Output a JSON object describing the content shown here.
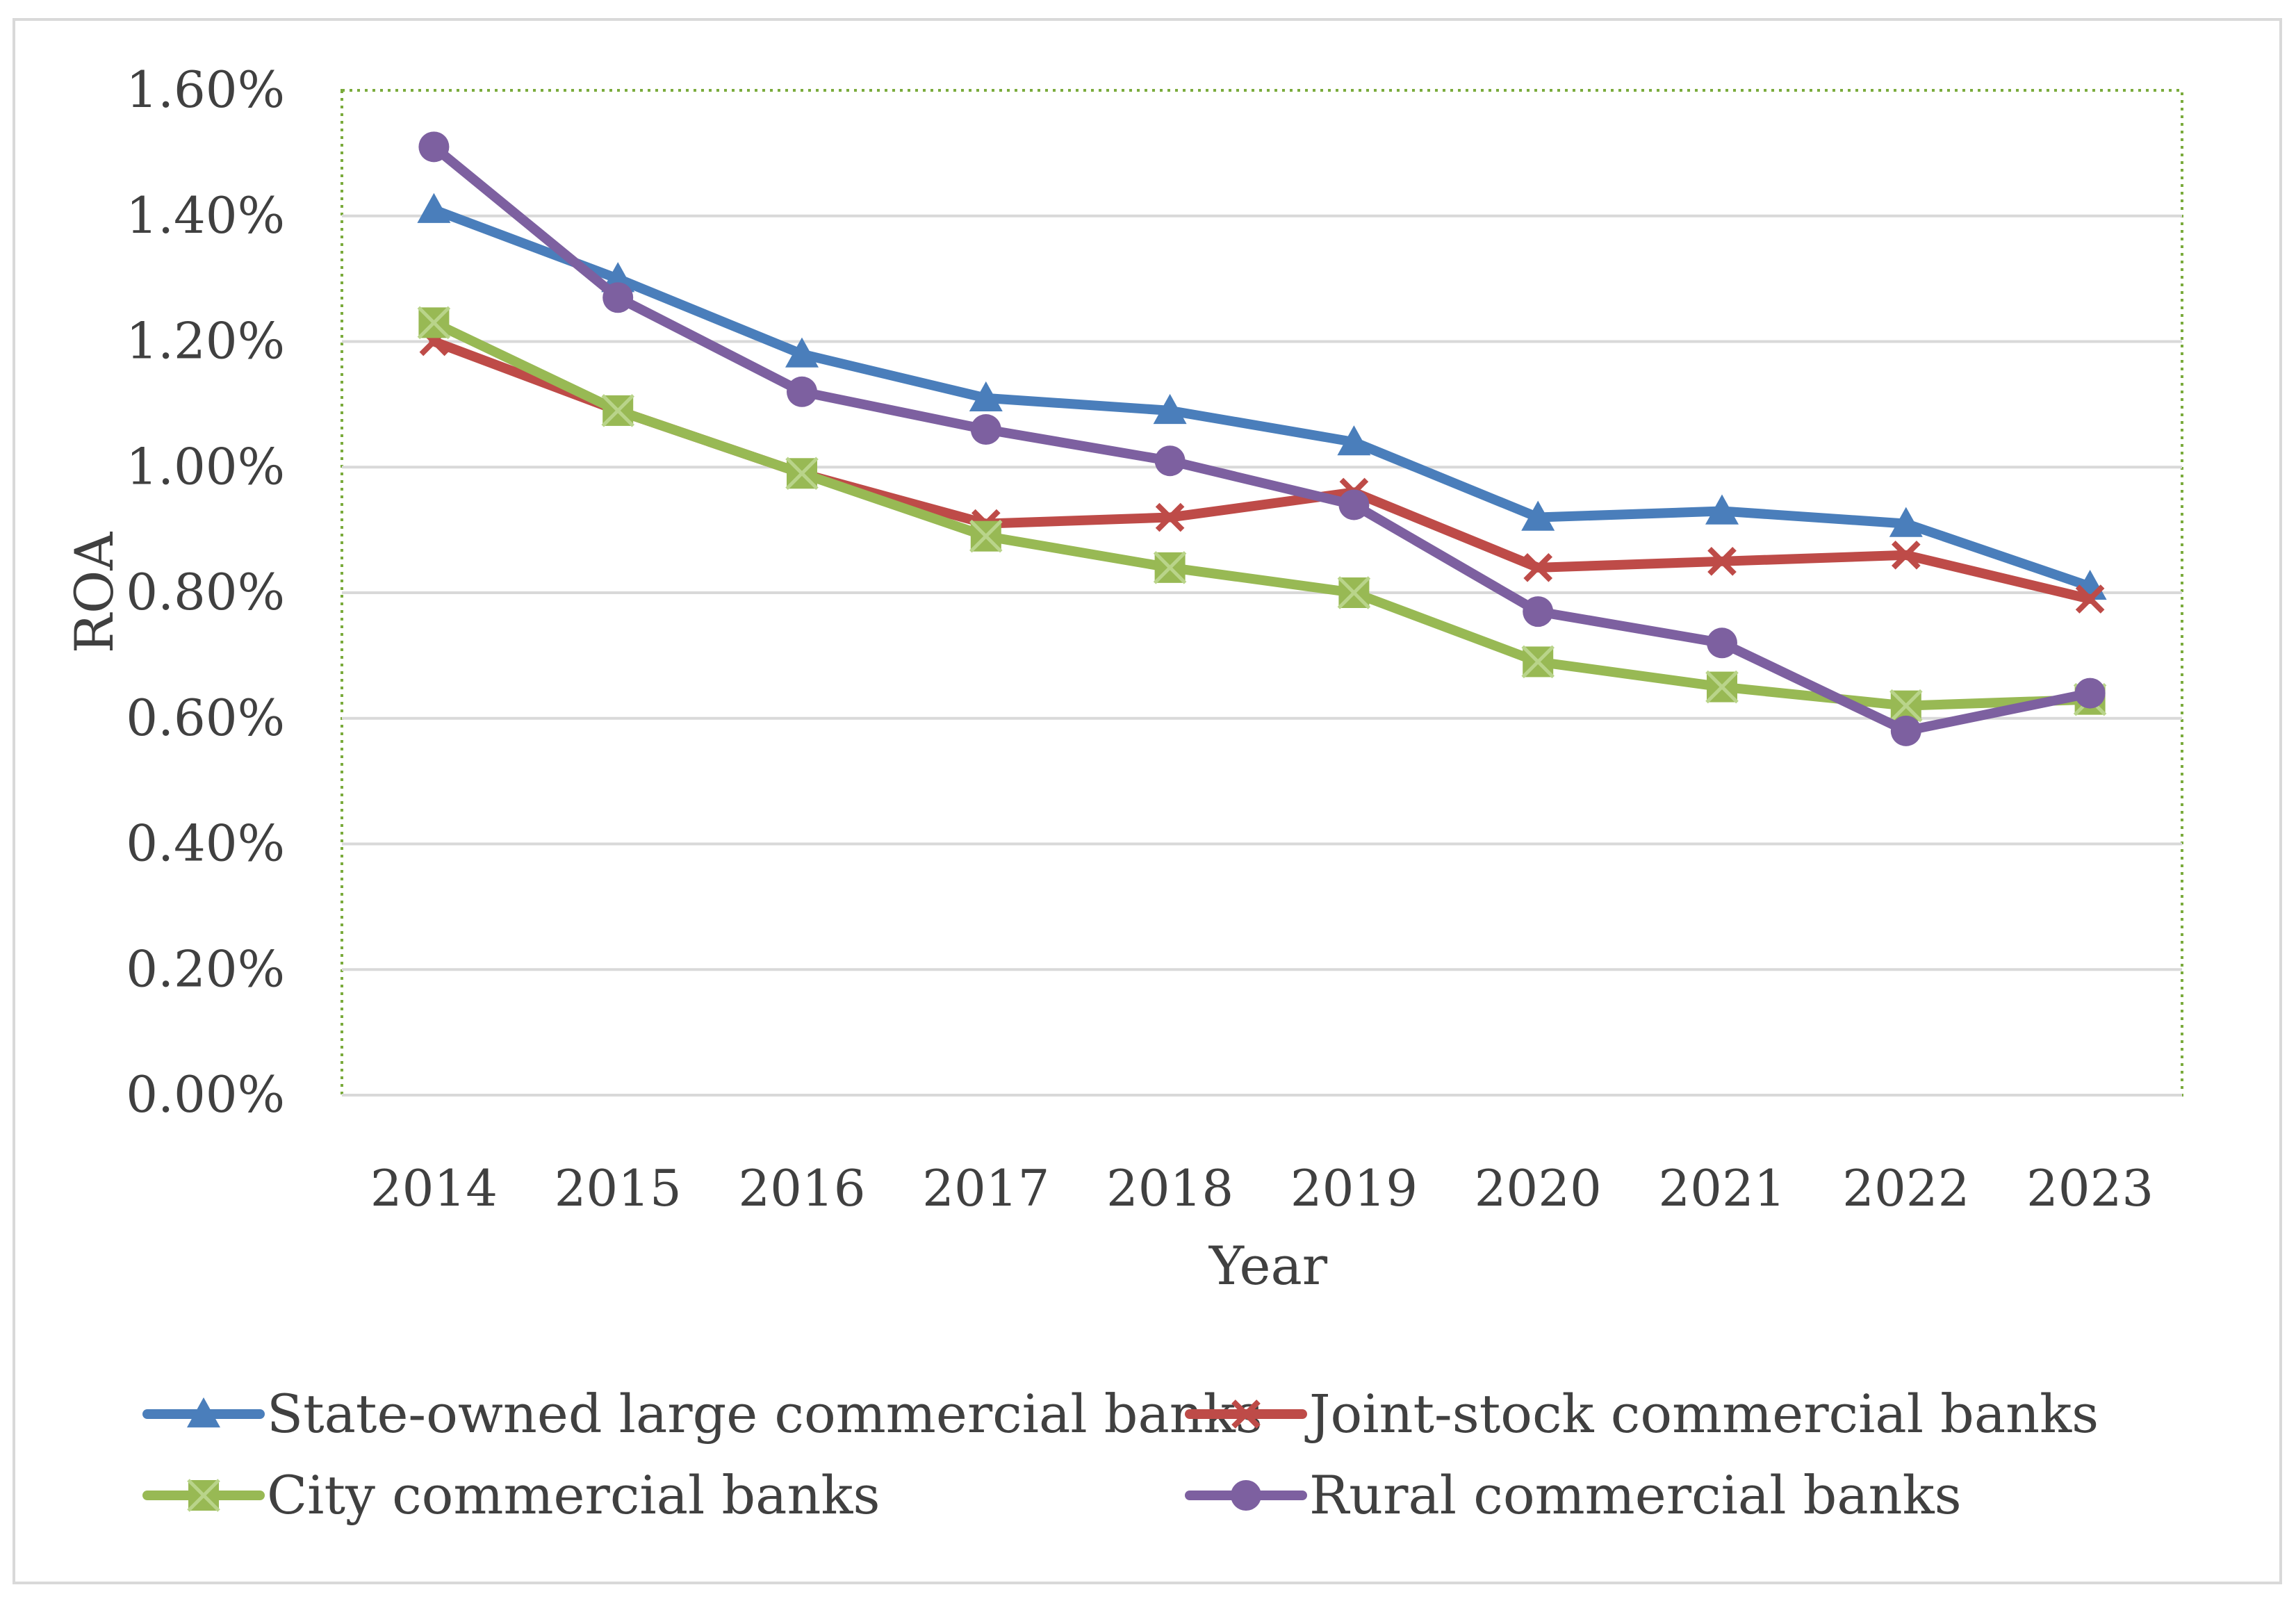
{
  "chart_data": {
    "type": "line",
    "title": "",
    "xlabel": "Year",
    "ylabel": "ROA",
    "categories": [
      "2014",
      "2015",
      "2016",
      "2017",
      "2018",
      "2019",
      "2020",
      "2021",
      "2022",
      "2023"
    ],
    "ylim": [
      0,
      1.6
    ],
    "y_ticks": [
      0,
      0.2,
      0.4,
      0.6,
      0.8,
      1.0,
      1.2,
      1.4,
      1.6
    ],
    "y_tick_labels": [
      "0.00%",
      "0.20%",
      "0.40%",
      "0.60%",
      "0.80%",
      "1.00%",
      "1.20%",
      "1.40%",
      "1.60%"
    ],
    "grid": true,
    "legend_position": "bottom",
    "series": [
      {
        "name": "State-owned large commercial banks",
        "color": "#4a7ebb",
        "marker": "triangle",
        "values": [
          1.41,
          1.3,
          1.18,
          1.11,
          1.09,
          1.04,
          0.92,
          0.93,
          0.91,
          0.81
        ]
      },
      {
        "name": "Joint-stock commercial banks",
        "color": "#be4b48",
        "marker": "cross",
        "values": [
          1.2,
          1.09,
          0.99,
          0.91,
          0.92,
          0.96,
          0.84,
          0.85,
          0.86,
          0.79
        ]
      },
      {
        "name": "City commercial banks",
        "color": "#98b954",
        "marker": "star",
        "values": [
          1.23,
          1.09,
          0.99,
          0.89,
          0.84,
          0.8,
          0.69,
          0.65,
          0.62,
          0.63
        ]
      },
      {
        "name": "Rural commercial banks",
        "color": "#7d60a0",
        "marker": "circle",
        "values": [
          1.51,
          1.27,
          1.12,
          1.06,
          1.01,
          0.94,
          0.77,
          0.72,
          0.58,
          0.64
        ]
      }
    ]
  }
}
